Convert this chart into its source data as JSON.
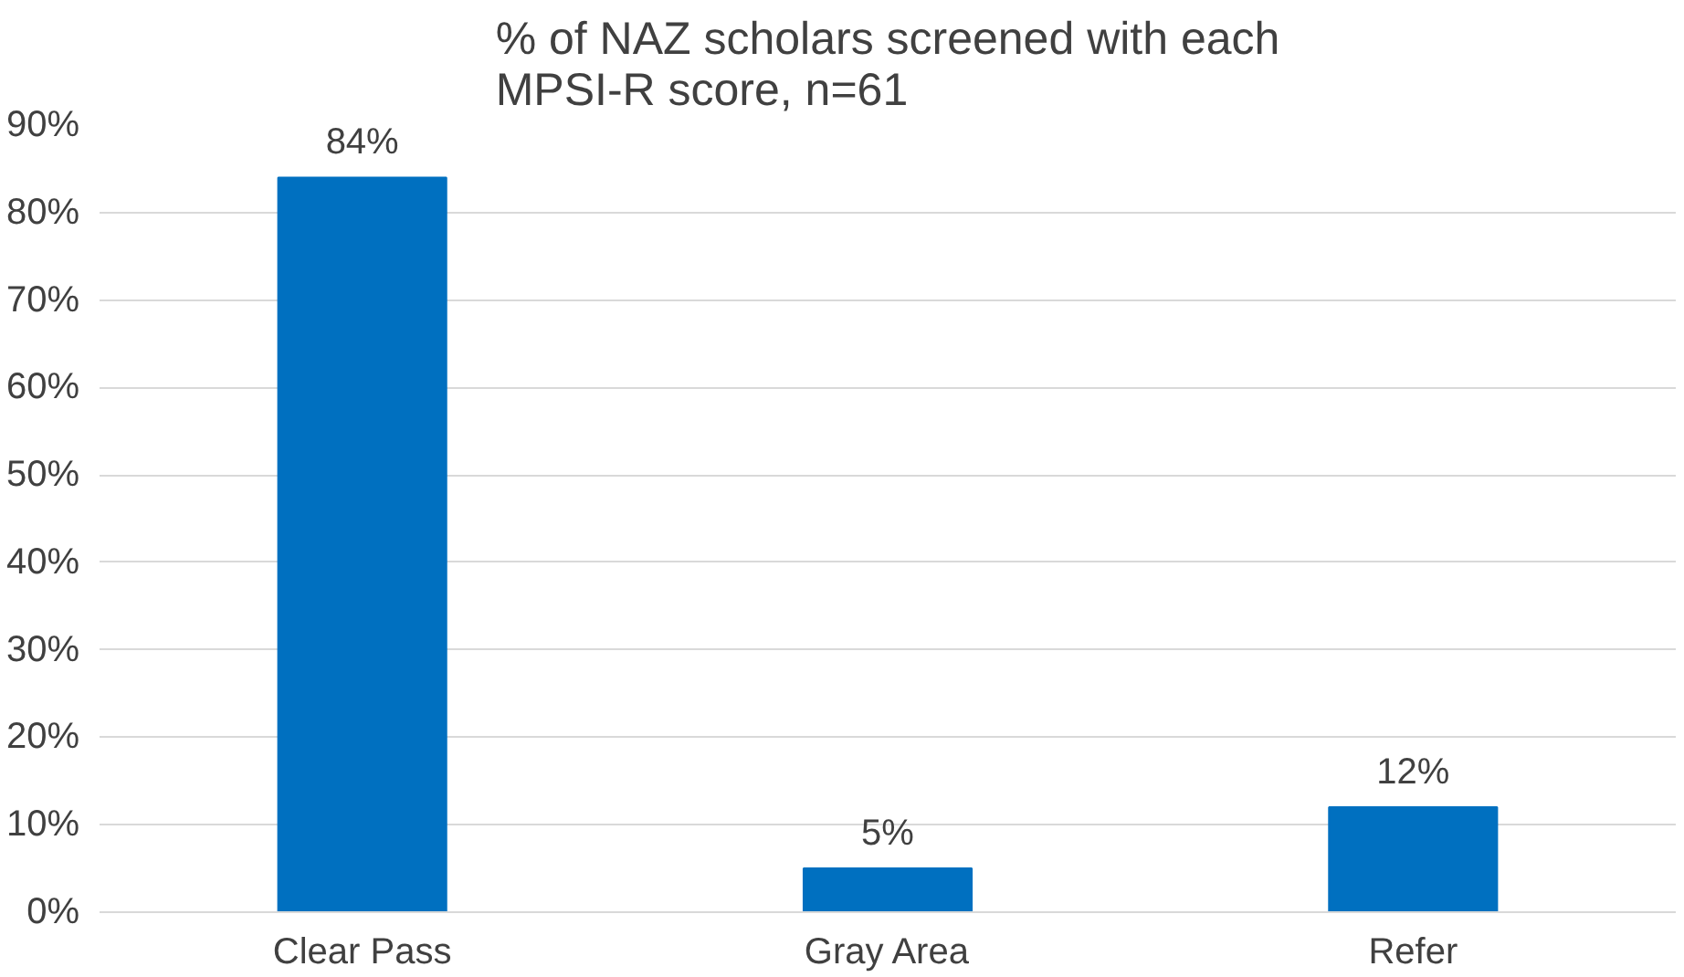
{
  "chart_data": {
    "type": "bar",
    "title": "% of NAZ scholars screened with each\nMPSI-R score, n=61",
    "categories": [
      "Clear Pass",
      "Gray Area",
      "Refer"
    ],
    "values": [
      84,
      5,
      12
    ],
    "color": "#0070c0",
    "value_labels": [
      "84%",
      "5%",
      "12%"
    ],
    "ylim": [
      0,
      90
    ],
    "yticks": [
      {
        "value": 0,
        "label": "0%"
      },
      {
        "value": 10,
        "label": "10%"
      },
      {
        "value": 20,
        "label": "20%"
      },
      {
        "value": 30,
        "label": "30%"
      },
      {
        "value": 40,
        "label": "40%"
      },
      {
        "value": 50,
        "label": "50%"
      },
      {
        "value": 60,
        "label": "60%"
      },
      {
        "value": 70,
        "label": "70%"
      },
      {
        "value": 80,
        "label": "80%"
      },
      {
        "value": 90,
        "label": "90%"
      }
    ],
    "grid": "y"
  }
}
